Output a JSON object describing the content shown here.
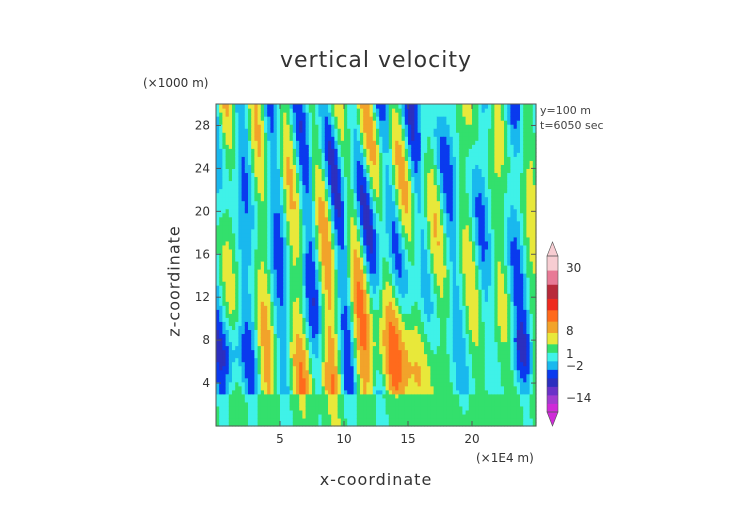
{
  "chart_data": {
    "type": "heatmap",
    "title": "vertical velocity",
    "xlabel": "x-coordinate",
    "ylabel": "z-coordinate",
    "x_unit": "(×1E4 m)",
    "y_unit": "(×1000 m)",
    "annotations": [
      "y=100 m",
      "t=6050 sec"
    ],
    "xlim": [
      0,
      25
    ],
    "ylim": [
      0,
      30
    ],
    "x_ticks": [
      5,
      10,
      15,
      20
    ],
    "y_ticks": [
      4,
      8,
      12,
      16,
      20,
      24,
      28
    ],
    "colorbar": {
      "levels": [
        -20,
        -17,
        -14,
        -11,
        -8,
        -5,
        -2,
        1,
        4,
        8,
        12,
        16,
        20,
        25,
        30,
        35
      ],
      "tick_labels": [
        "30",
        "8",
        "1",
        "−2",
        "−14"
      ],
      "tick_values": [
        30,
        8,
        1,
        -2,
        -14
      ],
      "colors": [
        "#cf2ad8",
        "#a23bd0",
        "#6a32c8",
        "#2c2fbf",
        "#0a3aee",
        "#19b8ee",
        "#3ff2e8",
        "#33e06c",
        "#e8e83a",
        "#f2a32a",
        "#ff6a1c",
        "#ee2a1f",
        "#b82a3a",
        "#e87a96",
        "#f7cdd2"
      ],
      "extend": "both"
    },
    "colors": {
      "axis": "#555555",
      "background": "#ffffff"
    }
  }
}
